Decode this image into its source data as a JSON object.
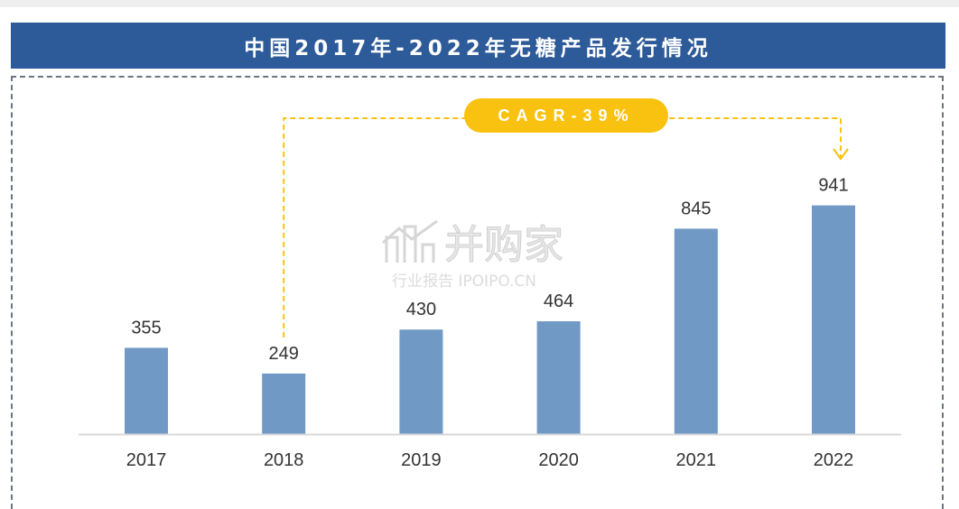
{
  "title": "中国2017年-2022年无糖产品发行情况",
  "cagr_label": "CAGR-39%",
  "watermark": {
    "main": "并购家",
    "sub": "行业报告 IPOIPO.CN"
  },
  "colors": {
    "title_bar": "#2D5A99",
    "bar": "#7199C6",
    "accent": "#F9C211"
  },
  "chart_data": {
    "type": "bar",
    "categories": [
      "2017",
      "2018",
      "2019",
      "2020",
      "2021",
      "2022"
    ],
    "values": [
      355,
      249,
      430,
      464,
      845,
      941
    ],
    "title": "中国2017年-2022年无糖产品发行情况",
    "xlabel": "",
    "ylabel": "",
    "ylim": [
      0,
      1000
    ],
    "grid": false,
    "annotation": {
      "text": "CAGR-39%",
      "from": "2018",
      "to": "2022"
    }
  }
}
